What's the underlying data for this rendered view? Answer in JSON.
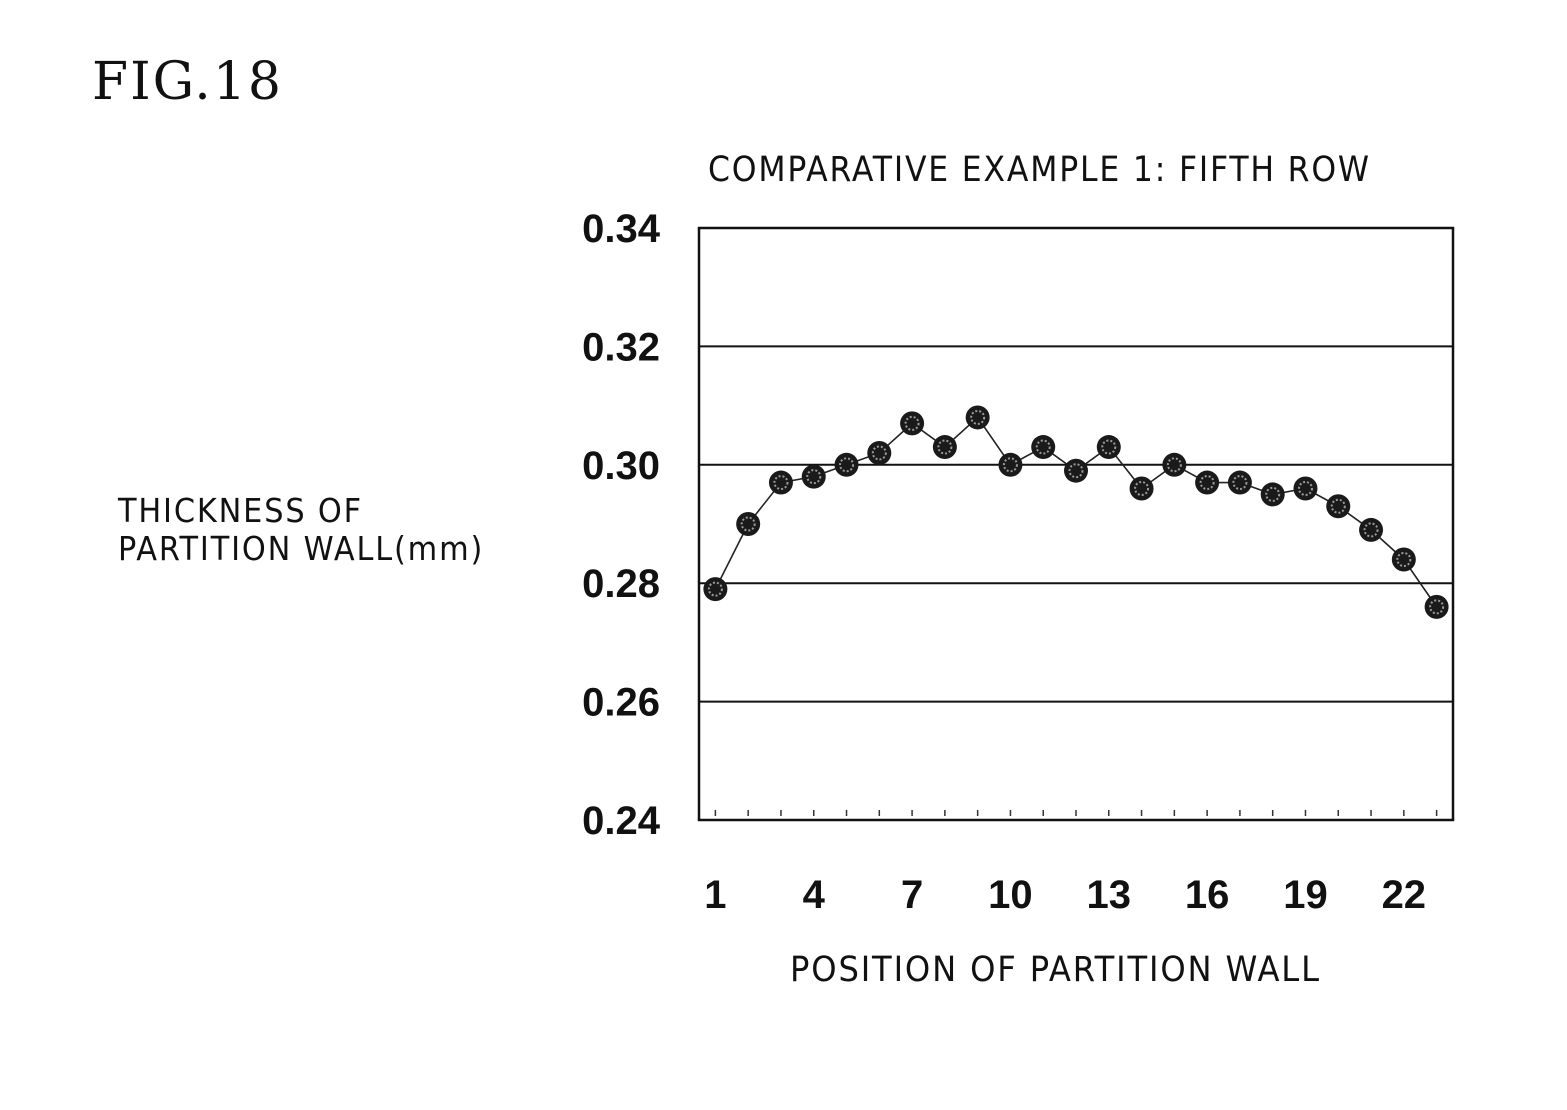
{
  "figure": {
    "label": "FIG.18"
  },
  "chart_data": {
    "type": "line",
    "title": "COMPARATIVE EXAMPLE 1: FIFTH ROW",
    "ylabel_lines": [
      "THICKNESS OF",
      "PARTITION WALL(mm)"
    ],
    "xlabel": "POSITION OF PARTITION WALL",
    "ylim": [
      0.24,
      0.34
    ],
    "yticks": [
      "0.24",
      "0.26",
      "0.28",
      "0.30",
      "0.32",
      "0.34"
    ],
    "xticks": [
      1,
      4,
      7,
      10,
      13,
      16,
      19,
      22
    ],
    "grid": true,
    "series": [
      {
        "x": [
          1,
          2,
          3,
          4,
          5,
          6,
          7,
          8,
          9,
          10,
          11,
          12,
          13,
          14,
          15,
          16,
          17,
          18,
          19,
          20,
          21,
          22,
          23
        ],
        "values": [
          0.279,
          0.29,
          0.297,
          0.298,
          0.3,
          0.302,
          0.307,
          0.303,
          0.308,
          0.3,
          0.303,
          0.299,
          0.303,
          0.296,
          0.3,
          0.297,
          0.297,
          0.295,
          0.296,
          0.293,
          0.289,
          0.284,
          0.276
        ]
      }
    ]
  }
}
